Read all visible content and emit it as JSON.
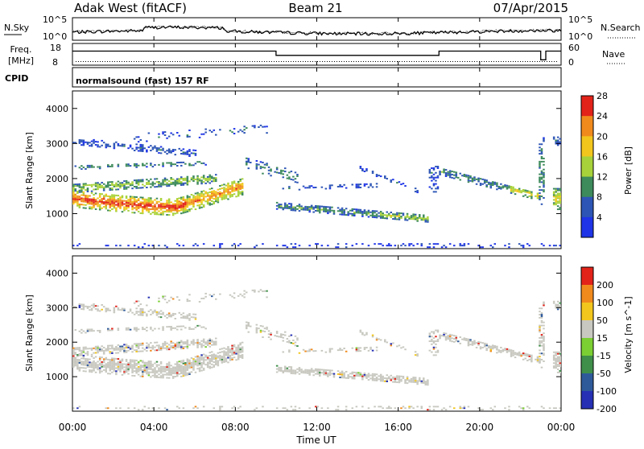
{
  "header": {
    "station": "Adak West (fitACF)",
    "beam": "Beam 21",
    "date": "07/Apr/2015"
  },
  "chart_data": [
    {
      "type": "line",
      "name": "noise-panel",
      "left_label": "N.Sky",
      "right_label": "N.Search",
      "left_ticks": [
        "10^5",
        "10^0"
      ],
      "right_ticks": [
        "10^5",
        "10^0"
      ]
    },
    {
      "type": "line",
      "name": "freq-nave-panel",
      "left_label_top": "Freq.",
      "left_label_bottom": "[MHz]",
      "right_label": "Nave",
      "left_ticks": [
        "18",
        "8"
      ],
      "right_ticks": [
        "60",
        "0"
      ],
      "ylim_left": [
        8,
        18
      ],
      "ylim_right": [
        0,
        60
      ],
      "freq_segments": [
        {
          "x": "00:00",
          "y": 14.5
        },
        {
          "x": "10:00",
          "y": 14.5
        },
        {
          "x": "10:00",
          "y": 12.5
        },
        {
          "x": "18:00",
          "y": 12.5
        },
        {
          "x": "18:00",
          "y": 14.5
        },
        {
          "x": "23:00",
          "y": 14.5
        },
        {
          "x": "23:00",
          "y": 10.5
        },
        {
          "x": "23:15",
          "y": 10.5
        },
        {
          "x": "23:15",
          "y": 14.5
        },
        {
          "x": "24:00",
          "y": 14.5
        }
      ],
      "nave_value": 10
    },
    {
      "type": "table",
      "name": "cpid-strip",
      "label": "CPID",
      "mode": "normalsound (fast) 157 RF"
    },
    {
      "type": "heatmap",
      "name": "power",
      "ylabel": "Slant Range [km]",
      "ylim": [
        0,
        4500
      ],
      "y_ticks": [
        "1000",
        "2000",
        "3000",
        "4000"
      ],
      "colorbar_label": "Power [dB]",
      "colorbar_ticks": [
        "4",
        "8",
        "12",
        "16",
        "20",
        "24",
        "28"
      ],
      "colors": [
        "#1e34e6",
        "#2d55b5",
        "#3d8a5b",
        "#a8d23a",
        "#f2c61d",
        "#f08a1d",
        "#e2231a"
      ]
    },
    {
      "type": "heatmap",
      "name": "velocity",
      "ylabel": "Slant Range [km]",
      "ylim": [
        0,
        4500
      ],
      "y_ticks": [
        "1000",
        "2000",
        "3000",
        "4000"
      ],
      "colorbar_label": "Velocity [m s^-1]",
      "colorbar_ticks": [
        "200",
        "100",
        "50",
        "15",
        "-15",
        "-50",
        "-100",
        "-200"
      ],
      "colors": [
        "#2530b5",
        "#2f5a9a",
        "#3f8f4a",
        "#7bcf33",
        "#c8c8c0",
        "#f2c61d",
        "#f08a1d",
        "#e2231a"
      ]
    }
  ],
  "x_axis": {
    "ticks": [
      "00:00",
      "04:00",
      "08:00",
      "12:00",
      "16:00",
      "20:00",
      "00:00"
    ],
    "label": "Time UT"
  }
}
